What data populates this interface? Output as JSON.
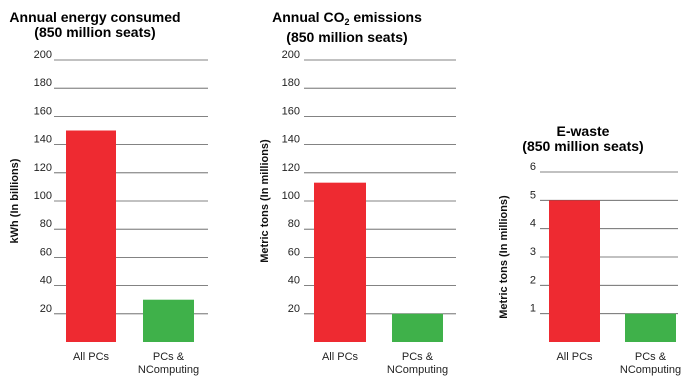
{
  "chart_data": [
    {
      "type": "bar",
      "title": [
        "Annual energy consumed",
        "(850 million seats)"
      ],
      "ylabel": "kWh (In billions)",
      "categories": [
        "All PCs",
        "PCs & NComputing"
      ],
      "category_lines": [
        [
          "All PCs"
        ],
        [
          "PCs &",
          "NComputing"
        ]
      ],
      "values": [
        150,
        30
      ],
      "bar_colors": [
        "#ee2a31",
        "#3fb14a"
      ],
      "ylim": [
        0,
        200
      ],
      "yticks": [
        20,
        40,
        60,
        80,
        100,
        120,
        140,
        160,
        180,
        200
      ],
      "grid": true
    },
    {
      "type": "bar",
      "title": [
        "Annual CO2 emissions",
        "(850 million seats)"
      ],
      "ylabel": "Metric tons (In millions)",
      "categories": [
        "All PCs",
        "PCs & NComputing"
      ],
      "category_lines": [
        [
          "All PCs"
        ],
        [
          "PCs &",
          "NComputing"
        ]
      ],
      "values": [
        113,
        20
      ],
      "bar_colors": [
        "#ee2a31",
        "#3fb14a"
      ],
      "ylim": [
        0,
        200
      ],
      "yticks": [
        20,
        40,
        60,
        80,
        100,
        120,
        140,
        160,
        180,
        200
      ],
      "grid": true
    },
    {
      "type": "bar",
      "title": [
        "E-waste",
        "(850 million seats)"
      ],
      "ylabel": "Metric tons (In millions)",
      "categories": [
        "All PCs",
        "PCs & NComputing"
      ],
      "category_lines": [
        [
          "All PCs"
        ],
        [
          "PCs &",
          "NComputing"
        ]
      ],
      "values": [
        5,
        1
      ],
      "bar_colors": [
        "#ee2a31",
        "#3fb14a"
      ],
      "ylim": [
        0,
        6
      ],
      "yticks": [
        1,
        2,
        3,
        4,
        5,
        6
      ],
      "grid": true
    }
  ],
  "titles": {
    "c1": {
      "line1": "Annual energy consumed",
      "line2": "(850 million seats)"
    },
    "c2": {
      "line1_pre": "Annual CO",
      "line1_sub": "2",
      "line1_post": " emissions",
      "line2": "(850 million seats)"
    },
    "c3": {
      "line1": "E-waste",
      "line2": "(850 million seats)"
    }
  }
}
